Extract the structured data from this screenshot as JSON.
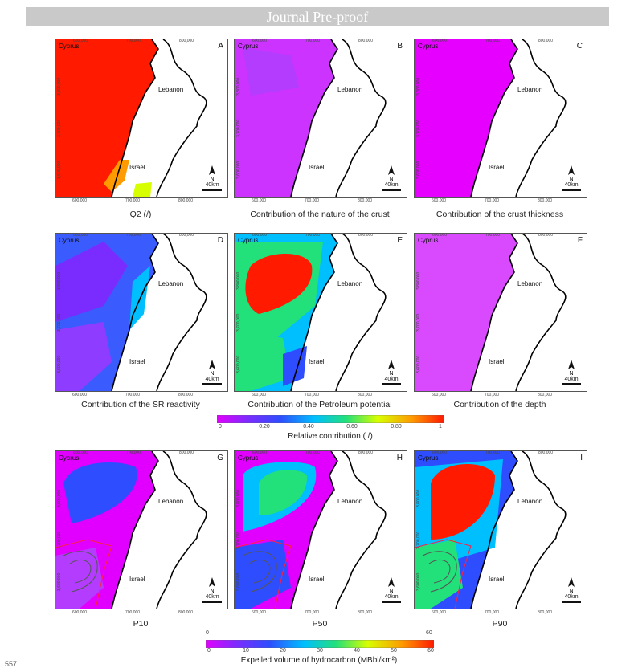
{
  "header": {
    "banner": "Journal Pre-proof"
  },
  "map_text": {
    "cyprus": "Cyprus",
    "lebanon": "Lebanon",
    "israel": "Israel",
    "north": "N",
    "scale": "40km",
    "x_ticks": [
      "600,000",
      "700,000",
      "800,000"
    ],
    "y_ticks": [
      "3,800,000",
      "3,700,000",
      "3,600,000"
    ]
  },
  "panels": [
    {
      "letter": "A",
      "caption": "Q2 (/)"
    },
    {
      "letter": "B",
      "caption": "Contribution of the nature of the crust"
    },
    {
      "letter": "C",
      "caption": "Contribution of the crust thickness"
    },
    {
      "letter": "D",
      "caption": "Contribution of the SR reactivity"
    },
    {
      "letter": "E",
      "caption": "Contribution of the Petroleum potential"
    },
    {
      "letter": "F",
      "caption": "Contribution of the depth"
    },
    {
      "letter": "G",
      "caption": "P10"
    },
    {
      "letter": "H",
      "caption": "P50"
    },
    {
      "letter": "I",
      "caption": "P90"
    }
  ],
  "colorbar1": {
    "title": "Relative contribution ( /)",
    "ticks": [
      "0",
      "0.20",
      "0.40",
      "0.60",
      "0.80",
      "1"
    ],
    "colors": [
      "#e100ff",
      "#7a2cff",
      "#2e4dff",
      "#00bfff",
      "#22e07a",
      "#d7ff00",
      "#ff9a00",
      "#ff1a00"
    ]
  },
  "colorbar2": {
    "title": "Expelled volume of hydrocarbon (MBbl/km²)",
    "ticks": [
      "0",
      "10",
      "20",
      "30",
      "40",
      "50",
      "60"
    ],
    "end_min": "0",
    "end_max": "60",
    "colors": [
      "#e100ff",
      "#7a2cff",
      "#2e4dff",
      "#00bfff",
      "#22e07a",
      "#d7ff00",
      "#ff9a00",
      "#ff1a00"
    ]
  },
  "footer": {
    "line_number": "557"
  }
}
